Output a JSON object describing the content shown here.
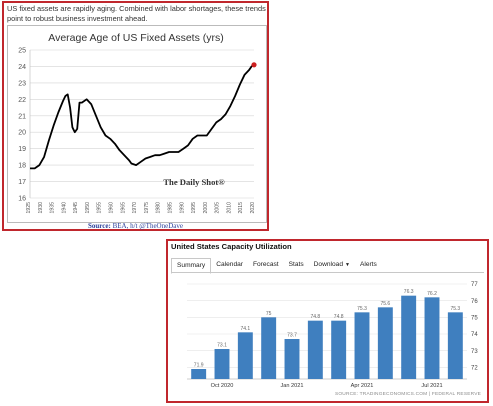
{
  "panel1": {
    "caption": "US fixed assets are rapidly aging. Combined with labor shortages, these trends point to robust business investment ahead.",
    "source_label": "Source:",
    "source_text": "BEA, h/t @TheOneDave"
  },
  "panel2": {
    "title": "United States Capacity Utilization",
    "tabs": [
      "Summary",
      "Calendar",
      "Forecast",
      "Stats",
      "Download",
      "Alerts"
    ],
    "active_tab": "Summary",
    "source": "SOURCE: TRADINGECONOMICS.COM | FEDERAL RESERVE"
  },
  "colors": {
    "frame": "#c0272d",
    "line": "#000000",
    "marker": "#cc1f1f",
    "bar": "#3f7fbf"
  },
  "icons": {
    "download": "chevron-down-icon"
  },
  "chart_data": [
    {
      "type": "line",
      "title": "Average Age of US Fixed Assets (yrs)",
      "watermark": "The Daily Shot®",
      "xlim": [
        1925,
        2020
      ],
      "ylim": [
        16,
        25
      ],
      "x_ticks": [
        1925,
        1930,
        1935,
        1940,
        1945,
        1950,
        1955,
        1960,
        1965,
        1970,
        1975,
        1980,
        1985,
        1990,
        1995,
        2000,
        2005,
        2010,
        2015,
        2020
      ],
      "y_ticks": [
        16,
        17,
        18,
        19,
        20,
        21,
        22,
        23,
        24,
        25
      ],
      "grid": true,
      "series": [
        {
          "x": [
            1925,
            1927,
            1929,
            1931,
            1933,
            1935,
            1937,
            1939,
            1940,
            1941,
            1942,
            1943,
            1944,
            1945,
            1946,
            1947,
            1949,
            1951,
            1953,
            1955,
            1957,
            1959,
            1961,
            1963,
            1965,
            1967,
            1968,
            1970,
            1972,
            1974,
            1976,
            1978,
            1980,
            1982,
            1984,
            1986,
            1988,
            1990,
            1992,
            1994,
            1996,
            1998,
            2000,
            2002,
            2004,
            2006,
            2008,
            2010,
            2012,
            2014,
            2016,
            2018,
            2019,
            2020
          ],
          "y": [
            17.8,
            17.8,
            18.0,
            18.5,
            19.5,
            20.4,
            21.2,
            21.9,
            22.2,
            22.3,
            21.5,
            20.3,
            20.0,
            20.2,
            21.8,
            21.8,
            22.0,
            21.7,
            21.0,
            20.3,
            19.8,
            19.6,
            19.3,
            18.9,
            18.6,
            18.3,
            18.1,
            18.0,
            18.2,
            18.4,
            18.5,
            18.6,
            18.6,
            18.7,
            18.8,
            18.8,
            18.8,
            19.0,
            19.2,
            19.6,
            19.8,
            19.8,
            19.8,
            20.2,
            20.6,
            20.8,
            21.1,
            21.6,
            22.2,
            22.9,
            23.5,
            23.8,
            24.0,
            24.1
          ]
        }
      ],
      "highlight_last_point": true
    },
    {
      "type": "bar",
      "categories": [
        "Sep 2020",
        "Oct 2020",
        "Nov 2020",
        "Dec 2020",
        "Jan 2021",
        "Feb 2021",
        "Mar 2021",
        "Apr 2021",
        "May 2021",
        "Jun 2021",
        "Jul 2021",
        "Aug 2021"
      ],
      "values": [
        71.9,
        73.1,
        74.1,
        75.0,
        73.7,
        74.8,
        74.8,
        75.3,
        75.6,
        76.3,
        76.2,
        75.3
      ],
      "data_labels": [
        "71.9",
        "73.1",
        "74.1",
        "75",
        "73.7",
        "74.8",
        "74.8",
        "75.3",
        "75.6",
        "76.3",
        "76.2",
        "75.3"
      ],
      "x_tick_labels": [
        {
          "category_index": 1,
          "label": "Oct 2020"
        },
        {
          "category_index": 4,
          "label": "Jan 2021"
        },
        {
          "category_index": 7,
          "label": "Apr 2021"
        },
        {
          "category_index": 10,
          "label": "Jul 2021"
        }
      ],
      "y_ticks": [
        72,
        73,
        74,
        75,
        76,
        77
      ],
      "ylim": [
        71.3,
        77.3
      ],
      "y_axis_side": "right",
      "grid": true
    }
  ]
}
